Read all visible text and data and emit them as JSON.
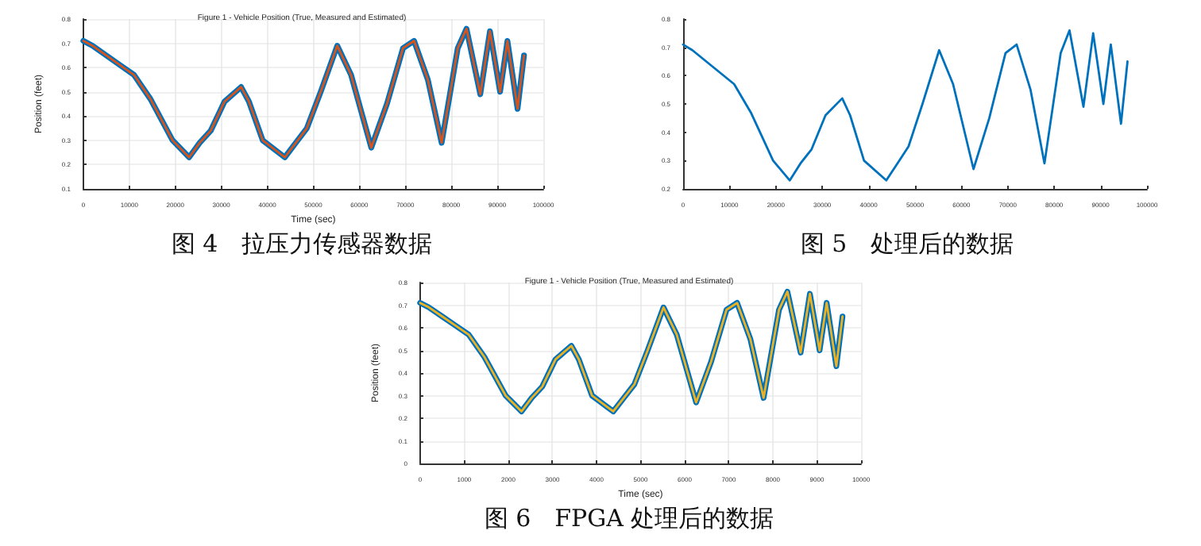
{
  "chart_data": [
    {
      "type": "line",
      "title": "Figure 1 - Vehicle Position (True, Measured and Estimated)",
      "xlabel": "Time (sec)",
      "ylabel": "Position (feet)",
      "annotations": [
        "图 4　拉压力传感器数据"
      ],
      "grid": true,
      "xlim": [
        0,
        100000
      ],
      "xticks": [
        0,
        10000,
        20000,
        30000,
        40000,
        50000,
        60000,
        70000,
        80000,
        90000,
        100000
      ],
      "ylim": [
        0.1,
        0.8
      ],
      "yticks": [
        0.1,
        0.2,
        0.3,
        0.4,
        0.5,
        0.6,
        0.7,
        0.8
      ],
      "x": [
        0,
        2000,
        5000,
        8000,
        11000,
        14600,
        19400,
        23000,
        25300,
        27700,
        30700,
        34300,
        36000,
        39000,
        43800,
        46200,
        48600,
        51600,
        55200,
        58200,
        62600,
        66000,
        69500,
        71900,
        74900,
        77900,
        81400,
        83300,
        86300,
        88400,
        90600,
        92200,
        94400,
        95800
      ],
      "series": [
        {
          "color": "#0072bd",
          "values": [
            0.71,
            0.69,
            0.65,
            0.61,
            0.57,
            0.47,
            0.3,
            0.23,
            0.29,
            0.34,
            0.46,
            0.52,
            0.46,
            0.3,
            0.23,
            0.29,
            0.35,
            0.5,
            0.69,
            0.57,
            0.27,
            0.45,
            0.68,
            0.71,
            0.55,
            0.29,
            0.68,
            0.76,
            0.49,
            0.75,
            0.5,
            0.71,
            0.43,
            0.65
          ]
        },
        {
          "color": "#d95319",
          "values": [
            0.71,
            0.69,
            0.65,
            0.61,
            0.57,
            0.47,
            0.3,
            0.23,
            0.29,
            0.34,
            0.46,
            0.52,
            0.46,
            0.3,
            0.23,
            0.29,
            0.35,
            0.5,
            0.69,
            0.57,
            0.27,
            0.45,
            0.68,
            0.71,
            0.55,
            0.29,
            0.68,
            0.76,
            0.49,
            0.75,
            0.5,
            0.71,
            0.43,
            0.65
          ]
        }
      ]
    },
    {
      "type": "line",
      "annotations": [
        "图 5　处理后的数据"
      ],
      "grid": false,
      "xlim": [
        0,
        100000
      ],
      "xticks": [
        0,
        10000,
        20000,
        30000,
        40000,
        50000,
        60000,
        70000,
        80000,
        90000,
        100000
      ],
      "ylim": [
        0.2,
        0.8
      ],
      "yticks": [
        0.2,
        0.3,
        0.4,
        0.5,
        0.6,
        0.7,
        0.8
      ],
      "x": [
        0,
        2000,
        5000,
        8000,
        11000,
        14600,
        19400,
        23000,
        25300,
        27700,
        30700,
        34300,
        36000,
        39000,
        43800,
        46200,
        48600,
        51600,
        55200,
        58200,
        62600,
        66000,
        69500,
        71900,
        74900,
        77900,
        81400,
        83300,
        86300,
        88400,
        90600,
        92200,
        94400,
        95800
      ],
      "series": [
        {
          "color": "#0072bd",
          "values": [
            0.71,
            0.69,
            0.65,
            0.61,
            0.57,
            0.47,
            0.3,
            0.23,
            0.29,
            0.34,
            0.46,
            0.52,
            0.46,
            0.3,
            0.23,
            0.29,
            0.35,
            0.5,
            0.69,
            0.57,
            0.27,
            0.45,
            0.68,
            0.71,
            0.55,
            0.29,
            0.68,
            0.76,
            0.49,
            0.75,
            0.5,
            0.71,
            0.43,
            0.65
          ]
        }
      ]
    },
    {
      "type": "line",
      "title": "Figure 1 - Vehicle Position (True, Measured and Estimated)",
      "xlabel": "Time (sec)",
      "ylabel": "Position (feet)",
      "annotations": [
        "图 6　FPGA 处理后的数据"
      ],
      "grid": true,
      "xlim": [
        0,
        10000
      ],
      "xticks": [
        0,
        1000,
        2000,
        3000,
        4000,
        5000,
        6000,
        7000,
        8000,
        9000,
        10000
      ],
      "ylim": [
        0,
        0.8
      ],
      "yticks": [
        0,
        0.1,
        0.2,
        0.3,
        0.4,
        0.5,
        0.6,
        0.7,
        0.8
      ],
      "x": [
        0,
        200,
        500,
        800,
        1100,
        1460,
        1940,
        2300,
        2530,
        2770,
        3070,
        3430,
        3600,
        3900,
        4380,
        4620,
        4860,
        5160,
        5520,
        5820,
        6260,
        6600,
        6950,
        7190,
        7490,
        7790,
        8140,
        8330,
        8630,
        8840,
        9060,
        9220,
        9440,
        9580
      ],
      "series": [
        {
          "color": "#0072bd",
          "values": [
            0.71,
            0.69,
            0.65,
            0.61,
            0.57,
            0.47,
            0.3,
            0.23,
            0.29,
            0.34,
            0.46,
            0.52,
            0.46,
            0.3,
            0.23,
            0.29,
            0.35,
            0.5,
            0.69,
            0.57,
            0.27,
            0.45,
            0.68,
            0.71,
            0.55,
            0.29,
            0.68,
            0.76,
            0.49,
            0.75,
            0.5,
            0.71,
            0.43,
            0.65
          ]
        },
        {
          "color": "#edb120",
          "values": [
            0.71,
            0.69,
            0.65,
            0.61,
            0.57,
            0.47,
            0.3,
            0.23,
            0.29,
            0.34,
            0.46,
            0.52,
            0.46,
            0.3,
            0.23,
            0.29,
            0.35,
            0.5,
            0.69,
            0.57,
            0.27,
            0.45,
            0.68,
            0.71,
            0.55,
            0.29,
            0.68,
            0.76,
            0.49,
            0.75,
            0.5,
            0.71,
            0.43,
            0.65
          ]
        }
      ]
    }
  ]
}
